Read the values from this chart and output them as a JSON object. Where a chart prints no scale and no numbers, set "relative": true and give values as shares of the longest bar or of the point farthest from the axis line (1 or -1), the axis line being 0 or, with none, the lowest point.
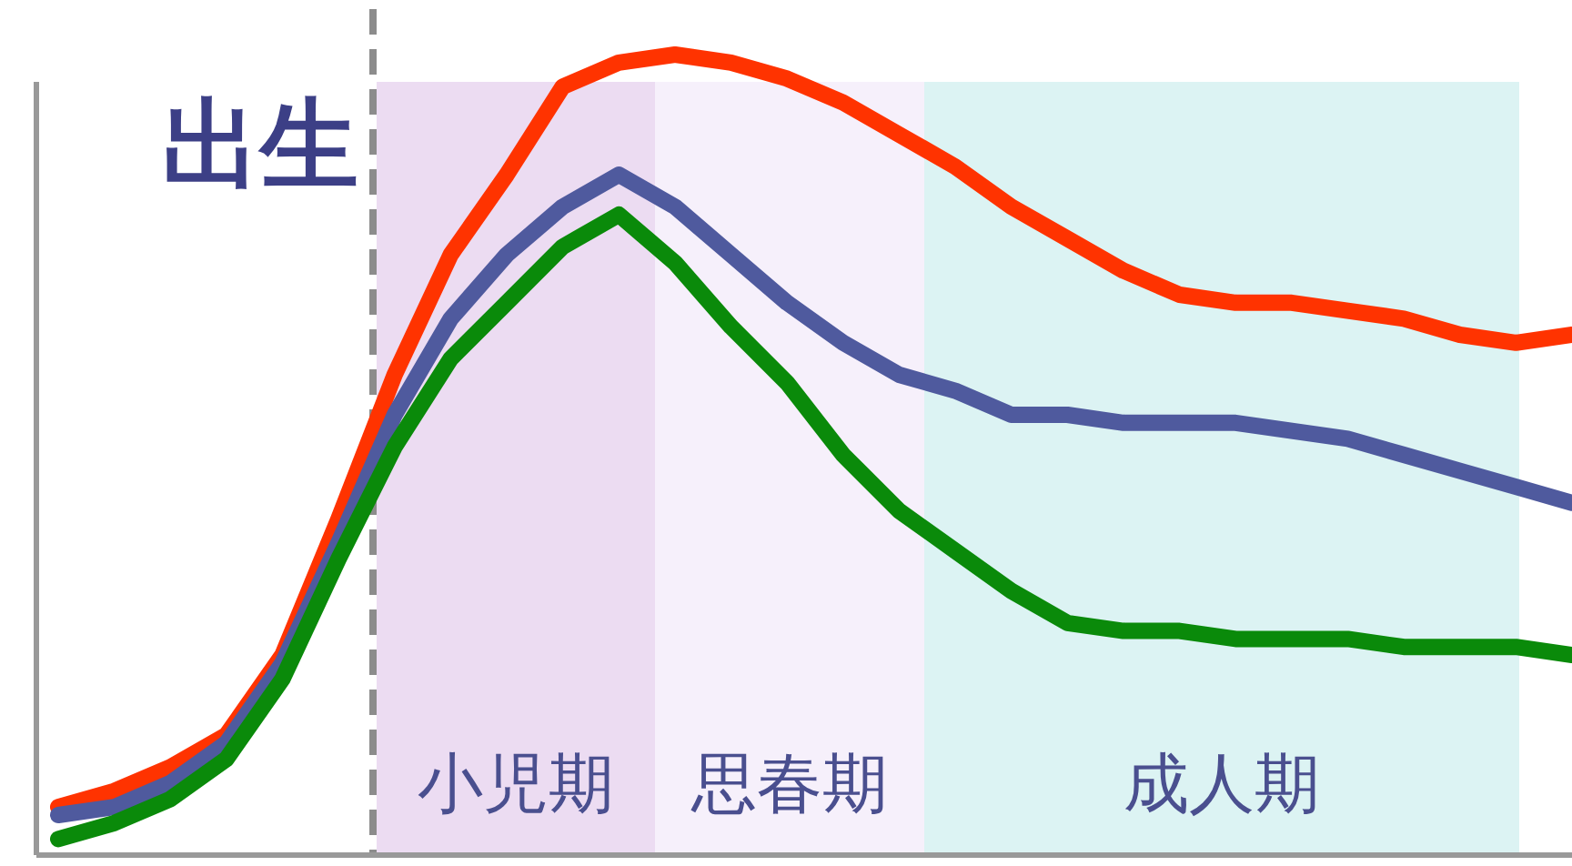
{
  "chart_data": {
    "type": "line",
    "relative": true,
    "categories": [
      null,
      null,
      null,
      null,
      null,
      null,
      null,
      null,
      null,
      null,
      null,
      null,
      null,
      null,
      null,
      null,
      null,
      null,
      null,
      null,
      null,
      null,
      null,
      null,
      null,
      null,
      null,
      null
    ],
    "annotations": [
      "出生",
      "小児期",
      "思春期",
      "成人期"
    ],
    "series": [
      {
        "color": "#ff3300",
        "values": [
          0.06,
          0.08,
          0.11,
          0.15,
          0.25,
          0.42,
          0.6,
          0.75,
          0.85,
          0.96,
          0.99,
          1.0,
          0.99,
          0.97,
          0.94,
          0.9,
          0.86,
          0.81,
          0.77,
          0.73,
          0.7,
          0.69,
          0.69,
          0.68,
          0.67,
          0.65,
          0.64,
          0.65
        ]
      },
      {
        "color": "#4f5a9e",
        "values": [
          0.05,
          0.06,
          0.09,
          0.14,
          0.24,
          0.39,
          0.55,
          0.67,
          0.75,
          0.81,
          0.85,
          0.81,
          0.75,
          0.69,
          0.64,
          0.6,
          0.58,
          0.55,
          0.55,
          0.54,
          0.54,
          0.54,
          0.53,
          0.52,
          0.5,
          0.48,
          0.46,
          0.44
        ]
      },
      {
        "color": "#0a8a0a",
        "values": [
          0.02,
          0.04,
          0.07,
          0.12,
          0.22,
          0.37,
          0.51,
          0.62,
          0.69,
          0.76,
          0.8,
          0.74,
          0.66,
          0.59,
          0.5,
          0.43,
          0.38,
          0.33,
          0.29,
          0.28,
          0.28,
          0.27,
          0.27,
          0.27,
          0.26,
          0.26,
          0.26,
          0.25
        ]
      }
    ]
  }
}
